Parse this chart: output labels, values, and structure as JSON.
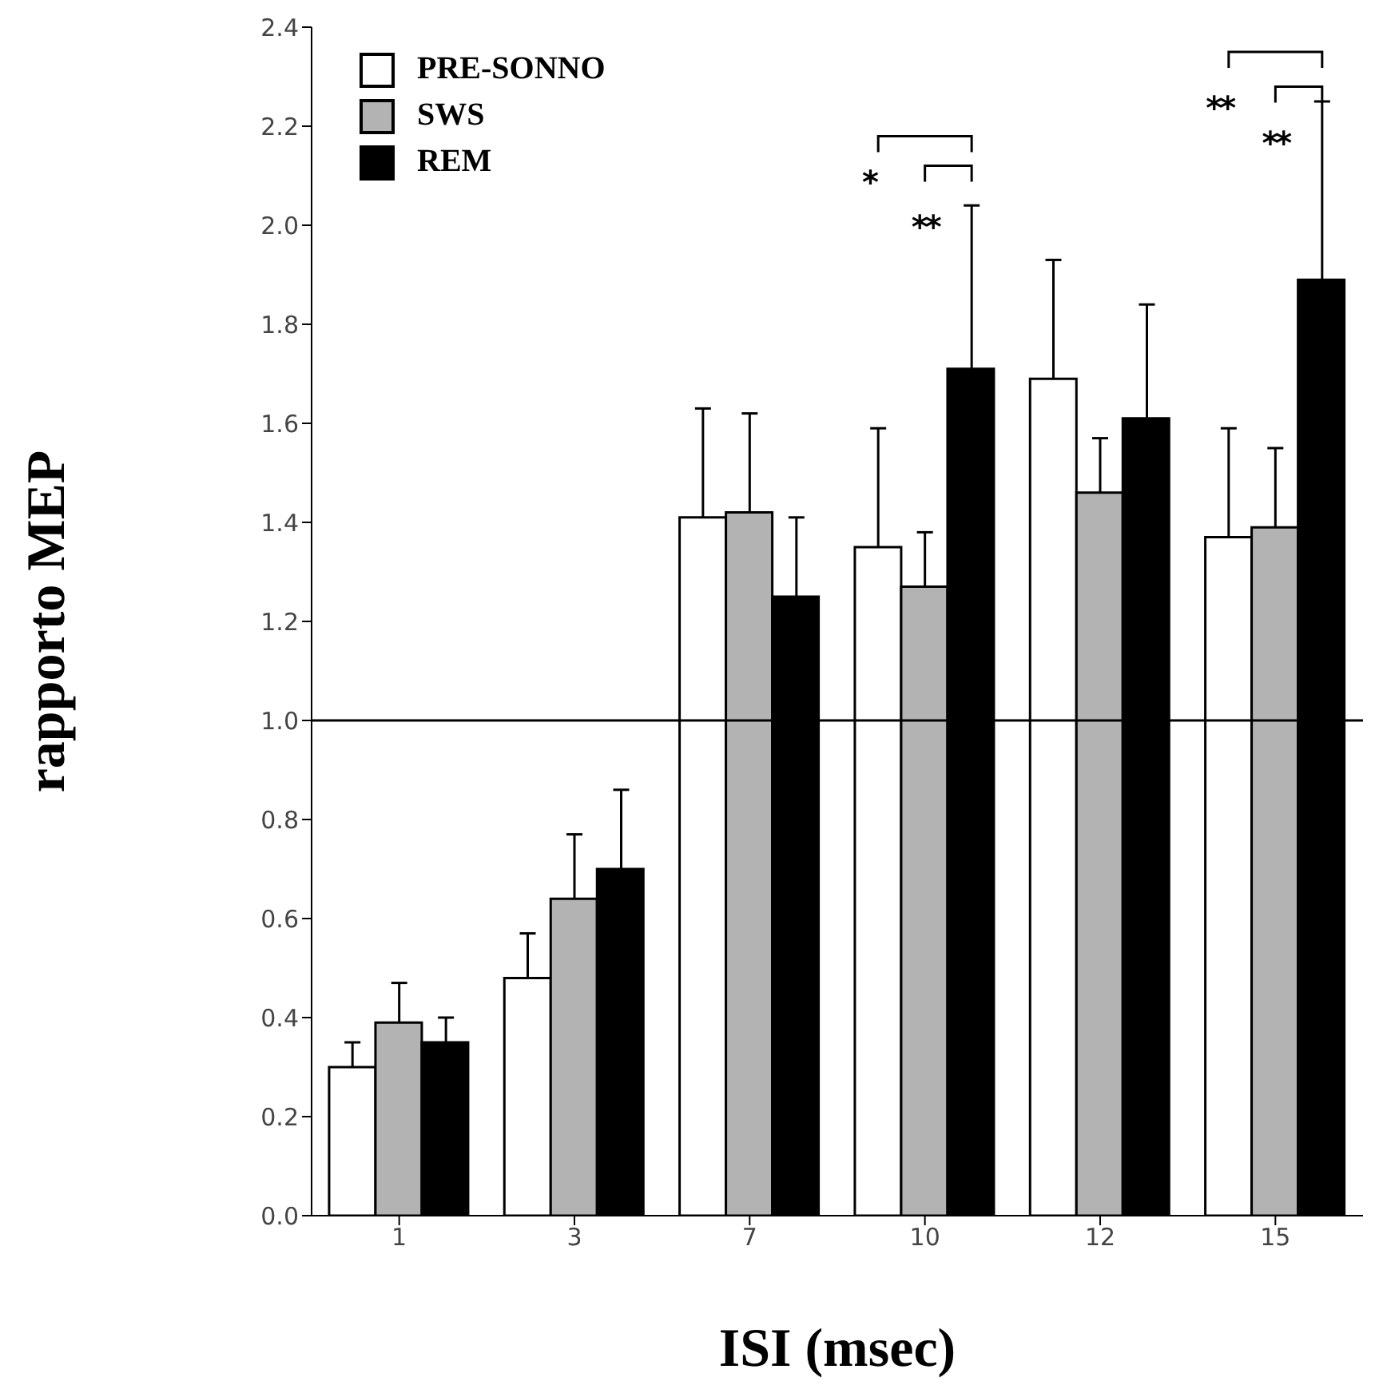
{
  "chart_data": {
    "type": "bar",
    "xlabel": "ISI (msec)",
    "ylabel": "rapporto MEP",
    "categories": [
      "1",
      "3",
      "7",
      "10",
      "12",
      "15"
    ],
    "series": [
      {
        "name": "PRE-SONNO",
        "color": "#ffffff",
        "values": [
          0.3,
          0.48,
          1.41,
          1.35,
          1.69,
          1.37
        ],
        "errors": [
          [
            0.3,
            0.35
          ],
          [
            0.48,
            0.57
          ],
          [
            1.41,
            1.63
          ],
          [
            1.35,
            1.59
          ],
          [
            1.69,
            1.93
          ],
          [
            1.37,
            1.59
          ]
        ]
      },
      {
        "name": "SWS",
        "color": "#b3b3b3",
        "values": [
          0.39,
          0.64,
          1.42,
          1.27,
          1.46,
          1.39
        ],
        "errors": [
          [
            0.39,
            0.47
          ],
          [
            0.64,
            0.77
          ],
          [
            1.42,
            1.62
          ],
          [
            1.27,
            1.38
          ],
          [
            1.46,
            1.57
          ],
          [
            1.39,
            1.55
          ]
        ]
      },
      {
        "name": "REM",
        "color": "#000000",
        "values": [
          0.35,
          0.7,
          1.25,
          1.71,
          1.61,
          1.89
        ],
        "errors": [
          [
            0.35,
            0.4
          ],
          [
            0.7,
            0.86
          ],
          [
            1.25,
            1.41
          ],
          [
            1.71,
            2.04
          ],
          [
            1.61,
            1.84
          ],
          [
            1.89,
            2.25
          ]
        ]
      }
    ],
    "ylim": [
      0,
      2.4
    ],
    "yticks": [
      {
        "value": 0,
        "label": "0.0"
      },
      0.2,
      0.4,
      0.6,
      0.8,
      {
        "value": 1,
        "label": "1.0"
      },
      1.2,
      1.4,
      1.6,
      1.8,
      {
        "value": 2,
        "label": "2.0"
      },
      2.2,
      2.4
    ],
    "ref_lines": [
      {
        "axis": "y",
        "value": 1,
        "label": null,
        "color": "#000000"
      }
    ],
    "annotations": [
      "*",
      "**",
      "**",
      "**"
    ],
    "legend": "top left",
    "grid": false
  }
}
